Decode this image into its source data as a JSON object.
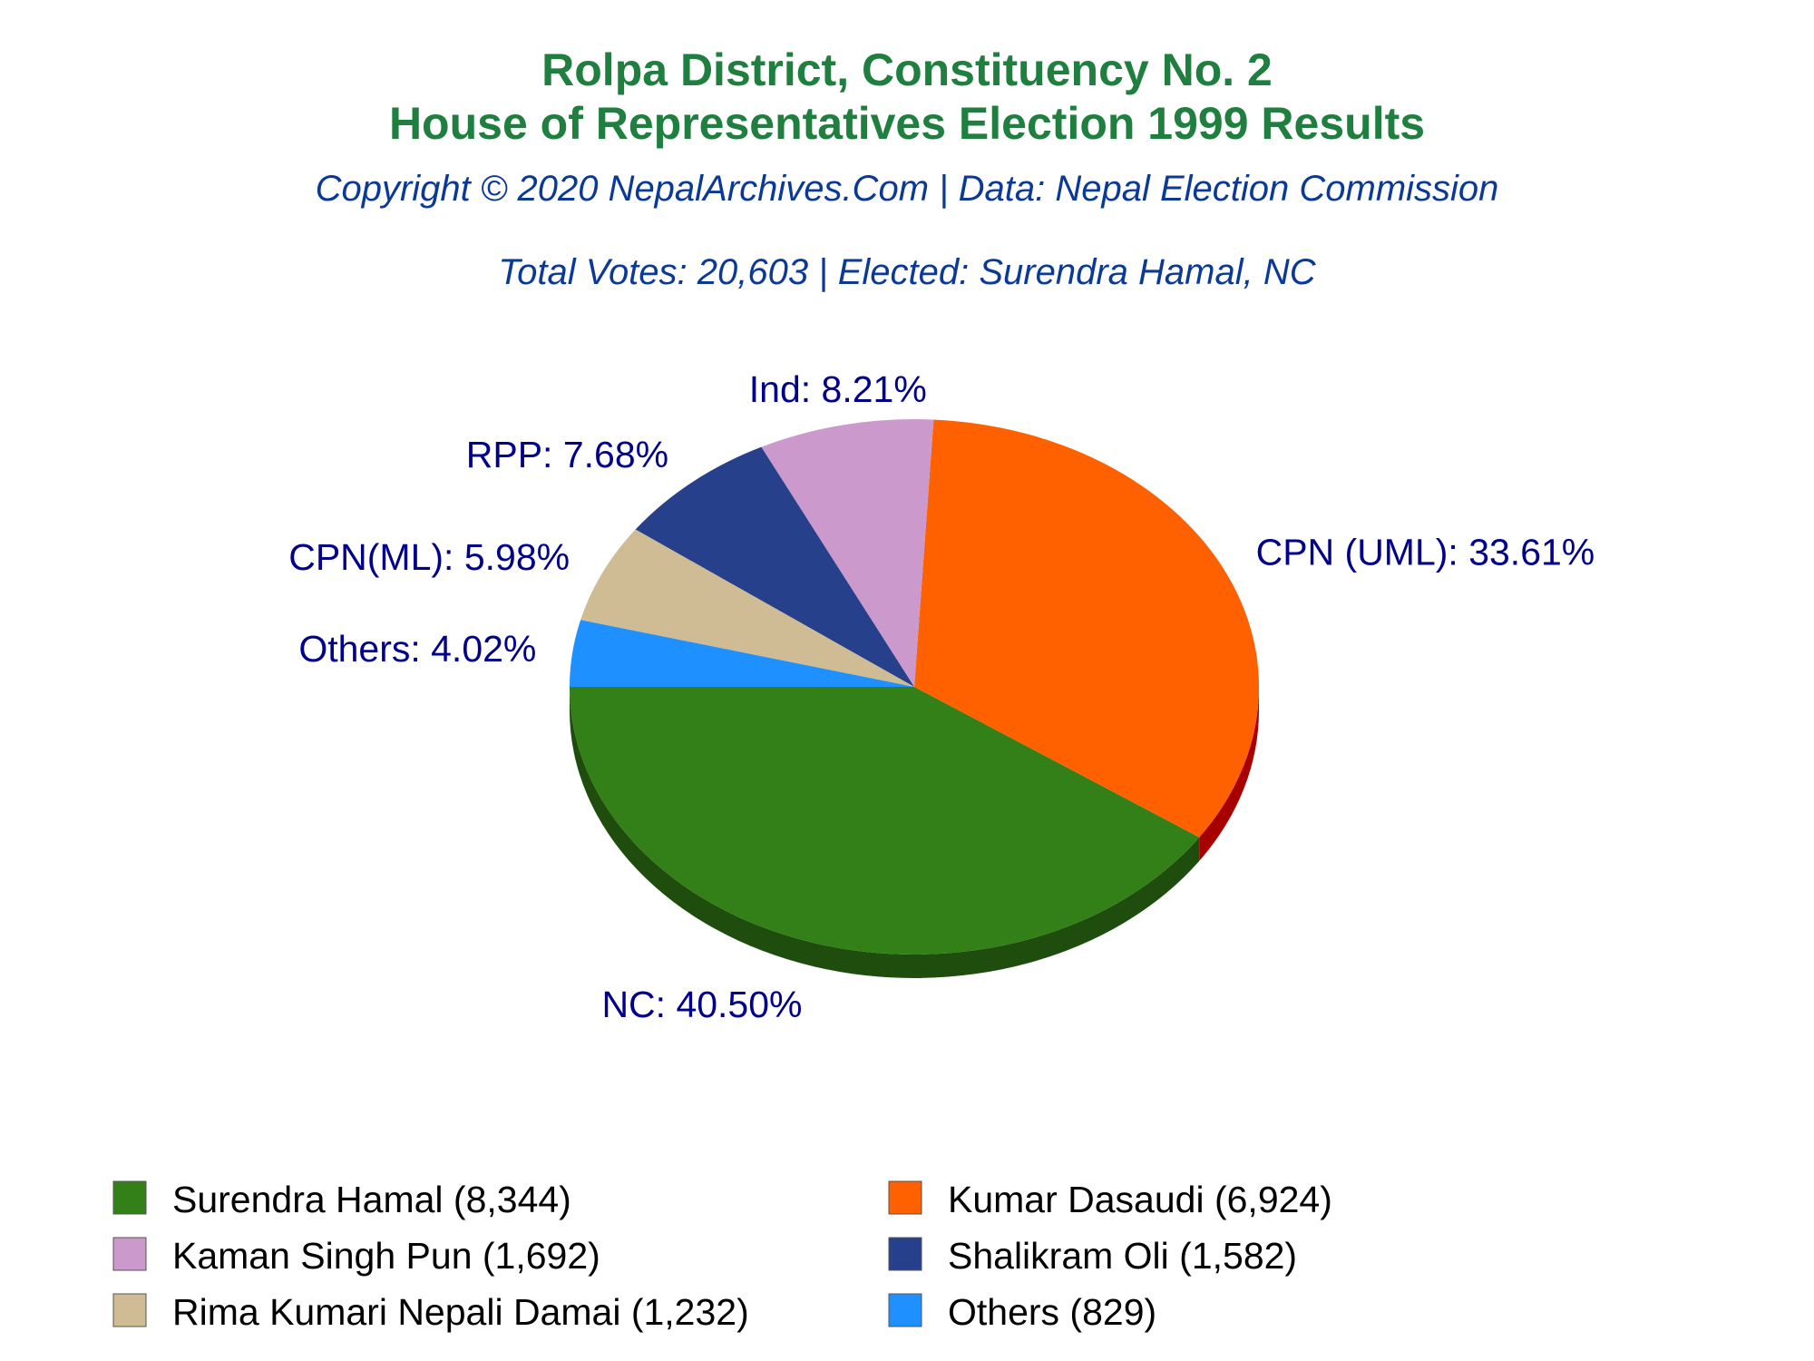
{
  "title_line1": "Rolpa District, Constituency No. 2",
  "title_line2": "House of Representatives Election 1999 Results",
  "copyright": "Copyright © 2020 NepalArchives.Com | Data: Nepal Election Commission",
  "summary": "Total Votes: 20,603 | Elected: Surendra Hamal, NC",
  "chart_data": {
    "type": "pie",
    "slices": [
      {
        "party": "NC",
        "candidate": "Surendra Hamal",
        "votes": 8344,
        "percent": 40.5,
        "label": "NC: 40.50%",
        "legend": "Surendra Hamal (8,344)",
        "color": "#338019",
        "side": "#1e4d0e"
      },
      {
        "party": "CPN (UML)",
        "candidate": "Kumar Dasaudi",
        "votes": 6924,
        "percent": 33.61,
        "label": "CPN (UML): 33.61%",
        "legend": "Kumar Dasaudi (6,924)",
        "color": "#ff6000",
        "side": "#a60000"
      },
      {
        "party": "Ind",
        "candidate": "Kaman Singh Pun",
        "votes": 1692,
        "percent": 8.21,
        "label": "Ind: 8.21%",
        "legend": "Kaman Singh Pun (1,692)",
        "color": "#cc99cc",
        "side": "#7d3f7d"
      },
      {
        "party": "RPP",
        "candidate": "Shalikram Oli",
        "votes": 1582,
        "percent": 7.68,
        "label": "RPP: 7.68%",
        "legend": "Shalikram Oli (1,582)",
        "color": "#27408b",
        "side": "#0a0a4a"
      },
      {
        "party": "CPN(ML)",
        "candidate": "Rima Kumari Nepali Damai",
        "votes": 1232,
        "percent": 5.98,
        "label": "CPN(ML): 5.98%",
        "legend": "Rima Kumari Nepali Damai (1,232)",
        "color": "#cfbb94",
        "side": "#8a7a5a"
      },
      {
        "party": "Others",
        "candidate": "Others",
        "votes": 829,
        "percent": 4.02,
        "label": "Others: 4.02%",
        "legend": "Others (829)",
        "color": "#1e90ff",
        "side": "#0c4f99"
      }
    ]
  }
}
